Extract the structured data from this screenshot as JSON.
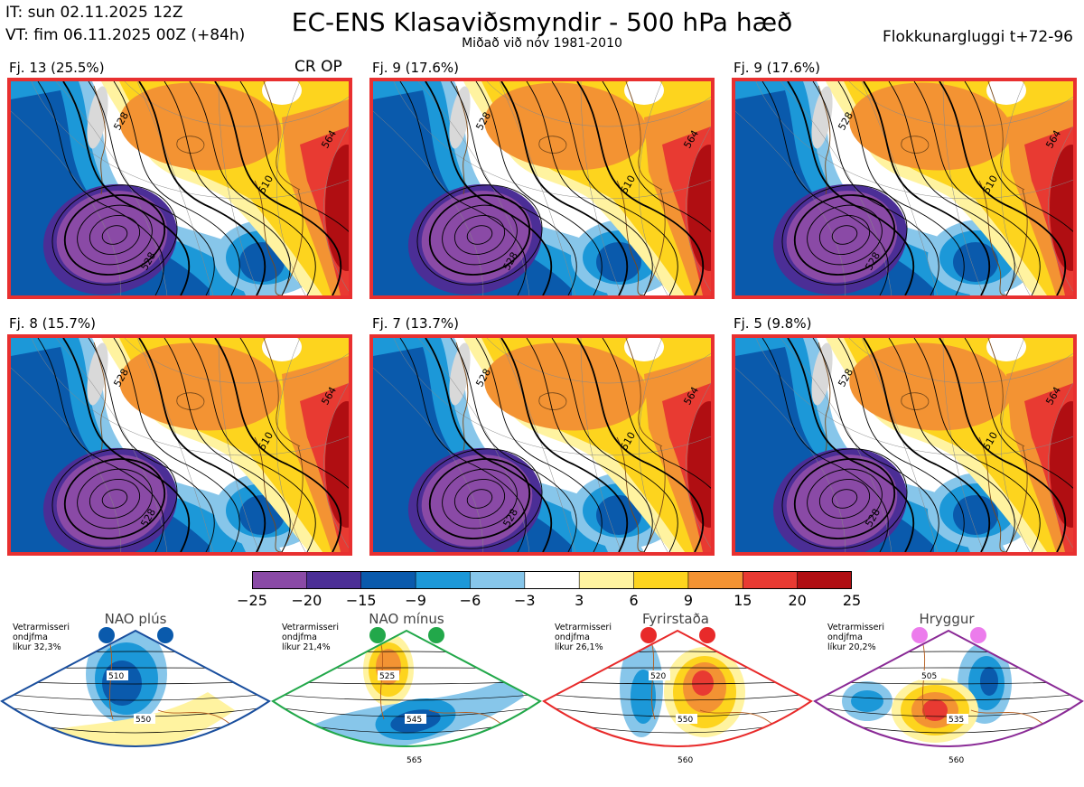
{
  "header": {
    "it_line": "IT: sun 02.11.2025 12Z",
    "vt_line": "VT: fim 06.11.2025 00Z  (+84h)",
    "title": "EC-ENS Klasaviðsmyndir - 500 hPa hæð",
    "subtitle": "Miðað við nóv 1981-2010",
    "window_label": "Flokkunargluggi t+72-96"
  },
  "panels": [
    {
      "label": "Fj. 13 (25.5%)",
      "tag": "CR OP"
    },
    {
      "label": "Fj. 9 (17.6%)",
      "tag": ""
    },
    {
      "label": "Fj. 9 (17.6%)",
      "tag": ""
    },
    {
      "label": "Fj. 8 (15.7%)",
      "tag": ""
    },
    {
      "label": "Fj. 7 (13.7%)",
      "tag": ""
    },
    {
      "label": "Fj. 5 (9.8%)",
      "tag": ""
    }
  ],
  "contour_labels": [
    "528",
    "546",
    "564",
    "510"
  ],
  "colorbar": {
    "ticks": [
      "−25",
      "−20",
      "−15",
      "−9",
      "−6",
      "−3",
      "3",
      "6",
      "9",
      "15",
      "20",
      "25"
    ],
    "colors": [
      "#8a4aa6",
      "#4b2e96",
      "#0a5aac",
      "#1c98d8",
      "#87c6ea",
      "#ffffff",
      "#fff3a0",
      "#fdd41e",
      "#f39333",
      "#e83a32",
      "#b00e12"
    ]
  },
  "regimes": [
    {
      "name": "NAO plús",
      "note": [
        "Vetrarmisseri",
        "ondjfma",
        "líkur 32,3%"
      ],
      "dot_color": "#0a5aac",
      "frame_color": "#1a4f9e",
      "contours": [
        "510",
        "550"
      ]
    },
    {
      "name": "NAO mínus",
      "note": [
        "Vetrarmisseri",
        "ondjfma",
        "líkur 21,4%"
      ],
      "dot_color": "#22a84a",
      "frame_color": "#22a84a",
      "contours": [
        "525",
        "545",
        "565"
      ]
    },
    {
      "name": "Fyrirstaða",
      "note": [
        "Vetrarmisseri",
        "ondjfma",
        "líkur 26,1%"
      ],
      "dot_color": "#e82a2a",
      "frame_color": "#e82a2a",
      "contours": [
        "520",
        "550",
        "560"
      ]
    },
    {
      "name": "Hryggur",
      "note": [
        "Vetrarmisseri",
        "ondjfma",
        "líkur 20,2%"
      ],
      "dot_color": "#ec7cec",
      "frame_color": "#8a2a96",
      "contours": [
        "505",
        "535",
        "560"
      ]
    }
  ]
}
